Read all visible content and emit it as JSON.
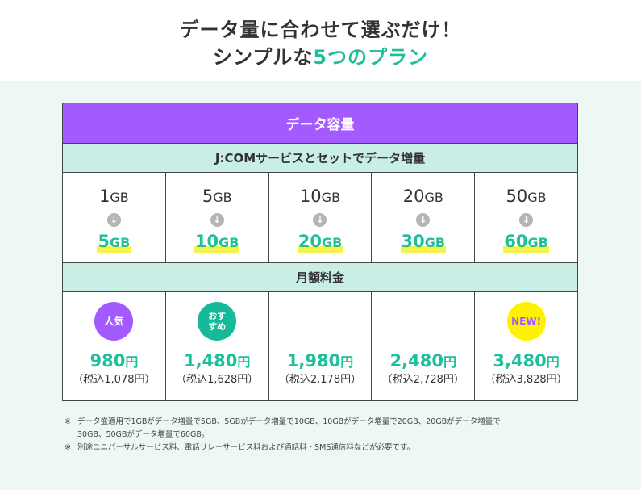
{
  "hero": {
    "line1": "データ量に合わせて選ぶだけ！",
    "line2_pre": "シンプルな",
    "line2_accent": "5つのプラン"
  },
  "table": {
    "header_capacity": "データ容量",
    "header_jcom": "J:COMサービスとセットでデータ増量",
    "header_price": "月額料金",
    "plans": [
      {
        "base_num": "1",
        "base_unit": "GB",
        "boost_num": "5",
        "boost_unit": "GB",
        "badge": "人気",
        "badge_style": "purple",
        "price": "980",
        "yen": "円",
        "tax": "（税込1,078円）"
      },
      {
        "base_num": "5",
        "base_unit": "GB",
        "boost_num": "10",
        "boost_unit": "GB",
        "badge": "おすすめ",
        "badge_line1": "おす",
        "badge_line2": "すめ",
        "badge_style": "teal",
        "price": "1,480",
        "yen": "円",
        "tax": "（税込1,628円）"
      },
      {
        "base_num": "10",
        "base_unit": "GB",
        "boost_num": "20",
        "boost_unit": "GB",
        "badge": "",
        "price": "1,980",
        "yen": "円",
        "tax": "（税込2,178円）"
      },
      {
        "base_num": "20",
        "base_unit": "GB",
        "boost_num": "30",
        "boost_unit": "GB",
        "badge": "",
        "price": "2,480",
        "yen": "円",
        "tax": "（税込2,728円）"
      },
      {
        "base_num": "50",
        "base_unit": "GB",
        "boost_num": "60",
        "boost_unit": "GB",
        "badge": "NEW!",
        "badge_style": "yellow",
        "price": "3,480",
        "yen": "円",
        "tax": "（税込3,828円）"
      }
    ],
    "arrow_glyph": "↓"
  },
  "notes": {
    "mark": "※",
    "note1_line1": "データ盛適用で1GBがデータ増量で5GB、5GBがデータ増量で10GB、10GBがデータ増量で20GB、20GBがデータ増量で",
    "note1_line2": "30GB、50GBがデータ増量で60GB。",
    "note2": "別途ユニバーサルサービス料、電話リレーサービス料および通話料・SMS通信料などが必要です。"
  },
  "colors": {
    "purple": "#a35bff",
    "mint": "#c9eee6",
    "green": "#1ebf9a",
    "yellow": "#fff200",
    "section_bg": "#edf8f4"
  }
}
